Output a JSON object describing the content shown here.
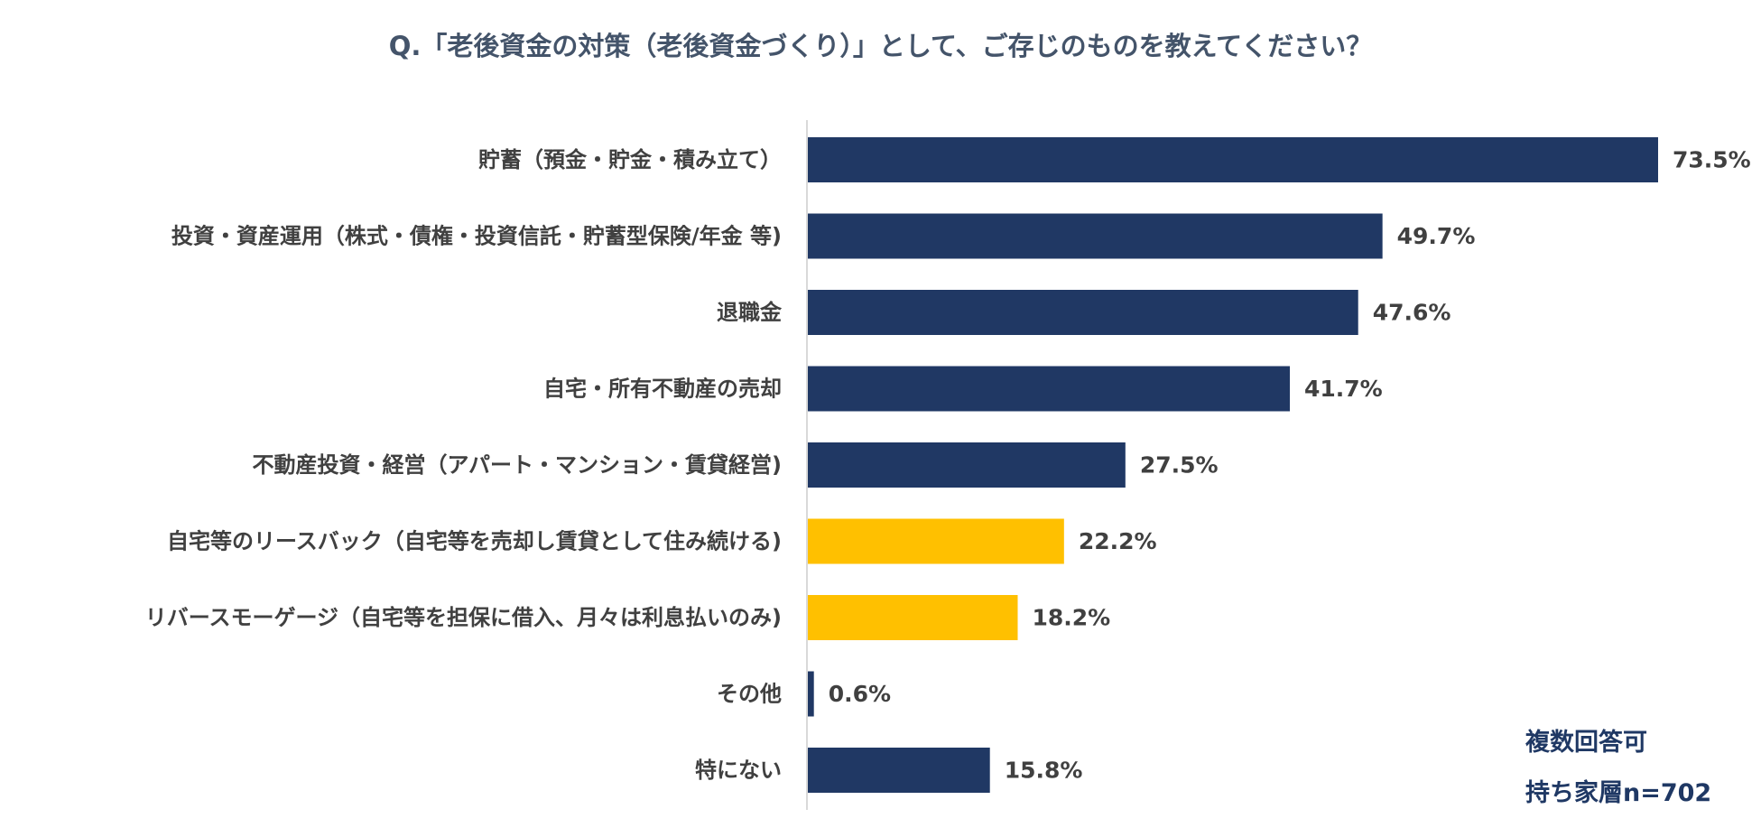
{
  "chart_data": {
    "type": "bar",
    "orientation": "horizontal",
    "title": "Q.「老後資金の対策（老後資金づくり）」として、ご存じのものを教えてください？",
    "categories": [
      "貯蓄（預金・貯金・積み立て）",
      "投資・資産運用（株式・債権・投資信託・貯蓄型保険/年金 等)",
      "退職金",
      "自宅・所有不動産の売却",
      "不動産投資・経営（アパート・マンション・賃貸経営)",
      "自宅等のリースバック（自宅等を売却し賃貸として住み続ける)",
      "リバースモーゲージ（自宅等を担保に借入、月々は利息払いのみ)",
      "その他",
      "特にない"
    ],
    "values": [
      73.5,
      49.7,
      47.6,
      41.7,
      27.5,
      22.2,
      18.2,
      0.6,
      15.8
    ],
    "value_labels": [
      "73.5%",
      "49.7%",
      "47.6%",
      "41.7%",
      "27.5%",
      "22.2%",
      "18.2%",
      "0.6%",
      "15.8%"
    ],
    "highlighted": [
      false,
      false,
      false,
      false,
      false,
      true,
      true,
      false,
      false
    ],
    "xlim": [
      0,
      80
    ],
    "grid": false,
    "legend": "none"
  },
  "colors": {
    "bar_default": "#203864",
    "bar_highlight": "#ffc000",
    "axis_line": "#d9d9d9",
    "category_text": "#404040",
    "value_text": "#404040",
    "title_text": "#44546a",
    "note_text": "#1f3864"
  },
  "notes": {
    "line1": "複数回答可",
    "line2": "持ち家層n=702"
  }
}
